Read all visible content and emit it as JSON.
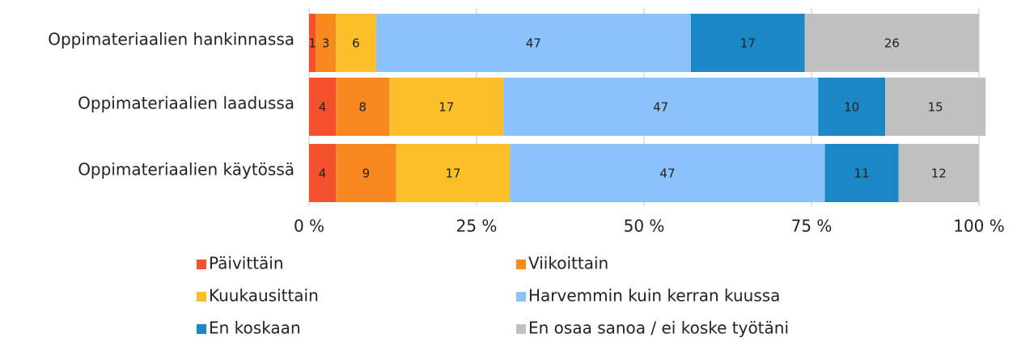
{
  "chart_data": {
    "type": "stacked-bar-horizontal",
    "categories": [
      "Oppimateriaalien hankinnassa",
      "Oppimateriaalien laadussa",
      "Oppimateriaalien käytössä"
    ],
    "series": [
      {
        "name": "Päivittäin",
        "color": "#f4512c",
        "values": [
          1,
          4,
          4
        ]
      },
      {
        "name": "Viikoittain",
        "color": "#f7891f",
        "values": [
          3,
          8,
          9
        ]
      },
      {
        "name": "Kuukausittain",
        "color": "#fbbf2a",
        "values": [
          6,
          17,
          17
        ]
      },
      {
        "name": "Harvemmin kuin kerran kuussa",
        "color": "#8cc2fb",
        "values": [
          47,
          47,
          47
        ]
      },
      {
        "name": "En koskaan",
        "color": "#1b87c4",
        "values": [
          17,
          10,
          11
        ]
      },
      {
        "name": "En osaa sanoa / ei koske työtäni",
        "color": "#c0c0c0",
        "values": [
          26,
          15,
          12
        ]
      }
    ],
    "xlim": [
      0,
      100
    ],
    "xticks": [
      {
        "value": 0,
        "label": "0 %"
      },
      {
        "value": 25,
        "label": "25 %"
      },
      {
        "value": 50,
        "label": "50 %"
      },
      {
        "value": 75,
        "label": "75 %"
      },
      {
        "value": 100,
        "label": "100 %"
      }
    ],
    "grid": true,
    "legend": "bottom"
  }
}
